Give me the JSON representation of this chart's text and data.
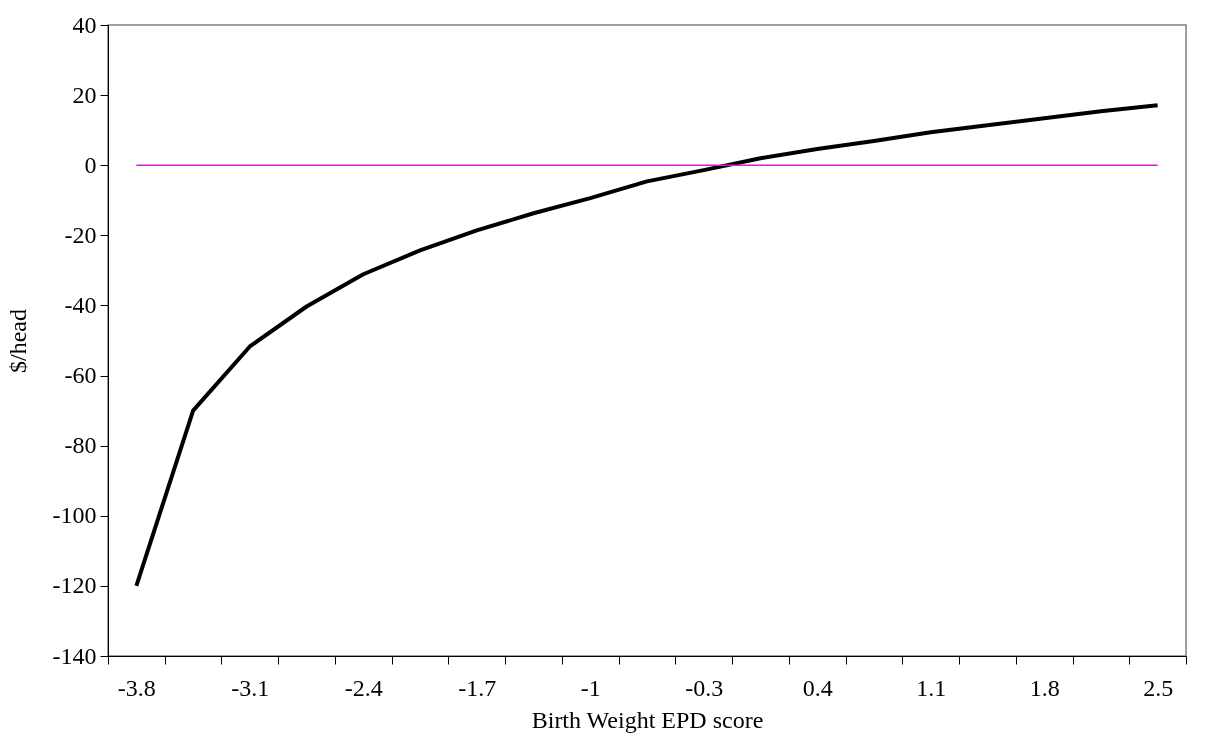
{
  "chart_data": {
    "type": "line",
    "xlabel": "Birth Weight EPD score",
    "ylabel": "$/head",
    "categories": [
      "-3.8",
      null,
      "-3.1",
      null,
      "-2.4",
      null,
      "-1.7",
      null,
      "-1",
      null,
      "-0.3",
      null,
      "0.4",
      null,
      "1.1",
      null,
      "1.8",
      null,
      "2.5"
    ],
    "series": [
      {
        "color": "#000000",
        "values": [
          -120,
          -70,
          -51.7,
          -40.3,
          -31.1,
          -24.3,
          -18.6,
          -13.7,
          -9.4,
          -4.6,
          -1.4,
          2.0,
          4.6,
          6.9,
          9.4,
          11.4,
          13.4,
          15.4,
          17.1
        ]
      }
    ],
    "ref_lines": [
      {
        "axis": "y",
        "value": 0,
        "color": "#ff00ff"
      }
    ],
    "ylim": [
      -140,
      40
    ],
    "yticks": [
      -140,
      -120,
      -100,
      -80,
      -60,
      -40,
      -20,
      0,
      20,
      40
    ],
    "marker": "none",
    "line_style": "solid"
  }
}
